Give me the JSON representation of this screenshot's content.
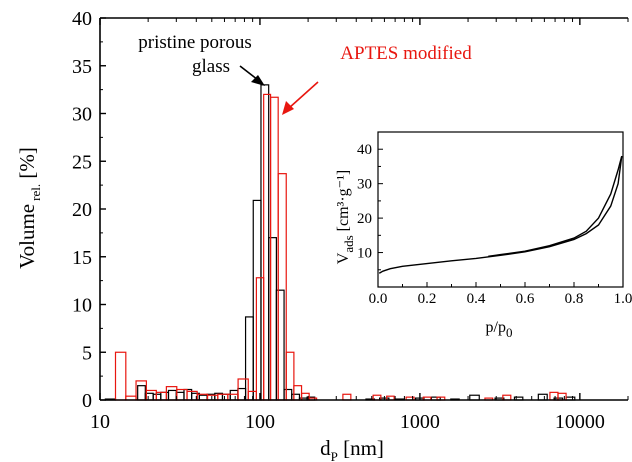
{
  "chart_data": [
    {
      "type": "bar",
      "xlabel": {
        "main": "d",
        "sub": "P",
        "unit": " [nm]"
      },
      "ylabel": {
        "main": "Volume",
        "sub": "rel.",
        "unit": " [%]"
      },
      "xscale": "log",
      "xlim": [
        10,
        20000
      ],
      "ylim": [
        0,
        40
      ],
      "xticks": [
        {
          "value": 10,
          "label": "10"
        },
        {
          "value": 100,
          "label": "100"
        },
        {
          "value": 1000,
          "label": "1000"
        },
        {
          "value": 10000,
          "label": "10000"
        }
      ],
      "yticks": [
        "0",
        "5",
        "10",
        "15",
        "20",
        "25",
        "30",
        "35",
        "40"
      ],
      "annotations": [
        {
          "lines": [
            "pristine porous",
            "glass"
          ],
          "color": "#000000"
        },
        {
          "lines": [
            "APTES modified"
          ],
          "color": "#e8160f"
        }
      ],
      "series": [
        {
          "color": "#000000",
          "bins": [
            [
              10.8,
              12.5,
              0.1
            ],
            [
              17.2,
              19.2,
              1.5
            ],
            [
              19.2,
              21.5,
              0.7
            ],
            [
              21.5,
              24,
              0.6
            ],
            [
              24,
              26.8,
              0.8
            ],
            [
              26.8,
              30,
              1.0
            ],
            [
              30,
              33.5,
              0.8
            ],
            [
              33.5,
              37.4,
              1.1
            ],
            [
              37.4,
              41.8,
              0.7
            ],
            [
              41.8,
              46.7,
              0.5
            ],
            [
              46.7,
              52.2,
              0.6
            ],
            [
              52.2,
              58.3,
              0.7
            ],
            [
              58.3,
              65.2,
              0.6
            ],
            [
              65.2,
              72.8,
              1.0
            ],
            [
              72.8,
              81.3,
              1.2
            ],
            [
              81.3,
              90.8,
              8.7
            ],
            [
              90.8,
              101.5,
              20.9
            ],
            [
              101.5,
              113.4,
              33.0
            ],
            [
              113.4,
              126.7,
              17.0
            ],
            [
              126.7,
              141.5,
              11.5
            ],
            [
              141.5,
              158,
              1.1
            ],
            [
              158,
              176.6,
              0.6
            ],
            [
              176.6,
              197,
              0.2
            ],
            [
              197,
              220,
              0.3
            ],
            [
              460,
              520,
              0.1
            ],
            [
              560,
              640,
              0.2
            ],
            [
              700,
              800,
              0.1
            ],
            [
              940,
              1060,
              0.2
            ],
            [
              1180,
              1340,
              0.3
            ],
            [
              1560,
              1760,
              0.1
            ],
            [
              2050,
              2350,
              0.5
            ],
            [
              2950,
              3350,
              0.2
            ],
            [
              3900,
              4400,
              0.3
            ],
            [
              5500,
              6250,
              0.6
            ],
            [
              6900,
              7800,
              0.2
            ],
            [
              8200,
              9300,
              0.3
            ]
          ]
        },
        {
          "color": "#e8160f",
          "bins": [
            [
              12.5,
              14.5,
              5.0
            ],
            [
              14.5,
              16.8,
              0.4
            ],
            [
              16.8,
              19.5,
              2.0
            ],
            [
              19.5,
              22.5,
              1.0
            ],
            [
              22.5,
              26,
              0.8
            ],
            [
              26,
              30.2,
              1.4
            ],
            [
              30.2,
              35,
              1.1
            ],
            [
              35,
              40.5,
              0.9
            ],
            [
              40.5,
              47,
              0.6
            ],
            [
              47,
              54.5,
              0.5
            ],
            [
              54.5,
              63,
              0.6
            ],
            [
              63,
              73,
              0.6
            ],
            [
              73,
              84.5,
              2.2
            ],
            [
              84.5,
              95,
              0.9
            ],
            [
              95,
              105.5,
              12.8
            ],
            [
              105.5,
              116.5,
              32.0
            ],
            [
              116.5,
              130,
              31.7
            ],
            [
              130,
              146,
              23.7
            ],
            [
              146,
              163,
              5.0
            ],
            [
              163,
              182,
              1.5
            ],
            [
              182,
              203,
              0.7
            ],
            [
              203,
              226,
              0.2
            ],
            [
              330,
              370,
              0.6
            ],
            [
              510,
              570,
              0.5
            ],
            [
              620,
              690,
              0.4
            ],
            [
              820,
              920,
              0.3
            ],
            [
              1050,
              1170,
              0.3
            ],
            [
              1280,
              1430,
              0.3
            ],
            [
              2550,
              2850,
              0.2
            ],
            [
              3300,
              3700,
              0.5
            ],
            [
              6500,
              7300,
              0.8
            ],
            [
              7300,
              8200,
              0.7
            ]
          ]
        }
      ]
    },
    {
      "type": "line",
      "xlabel": {
        "main": "p/p",
        "sub": "0"
      },
      "ylabel": {
        "main": "V",
        "sub": "ads",
        "unit": " [cm³·g⁻¹]"
      },
      "xlim": [
        0,
        1
      ],
      "ylim": [
        0,
        45
      ],
      "xticks": [
        "0.0",
        "0.2",
        "0.4",
        "0.6",
        "0.8",
        "1.0"
      ],
      "yticks": [
        "10",
        "20",
        "30",
        "40"
      ],
      "series": [
        {
          "color": "#000000",
          "points": [
            [
              0.005,
              4.0
            ],
            [
              0.02,
              4.6
            ],
            [
              0.05,
              5.3
            ],
            [
              0.1,
              6.0
            ],
            [
              0.2,
              6.8
            ],
            [
              0.3,
              7.6
            ],
            [
              0.4,
              8.3
            ],
            [
              0.5,
              9.2
            ],
            [
              0.6,
              10.2
            ],
            [
              0.7,
              11.7
            ],
            [
              0.8,
              13.8
            ],
            [
              0.85,
              15.5
            ],
            [
              0.9,
              18.0
            ],
            [
              0.95,
              23.5
            ],
            [
              0.98,
              30.0
            ],
            [
              0.995,
              38.0
            ]
          ]
        },
        {
          "color": "#000000",
          "points": [
            [
              0.995,
              38.0
            ],
            [
              0.98,
              34.0
            ],
            [
              0.95,
              27.0
            ],
            [
              0.9,
              20.0
            ],
            [
              0.85,
              16.2
            ],
            [
              0.8,
              14.2
            ],
            [
              0.7,
              12.0
            ],
            [
              0.6,
              10.4
            ],
            [
              0.5,
              9.4
            ],
            [
              0.45,
              8.9
            ]
          ]
        }
      ]
    }
  ]
}
